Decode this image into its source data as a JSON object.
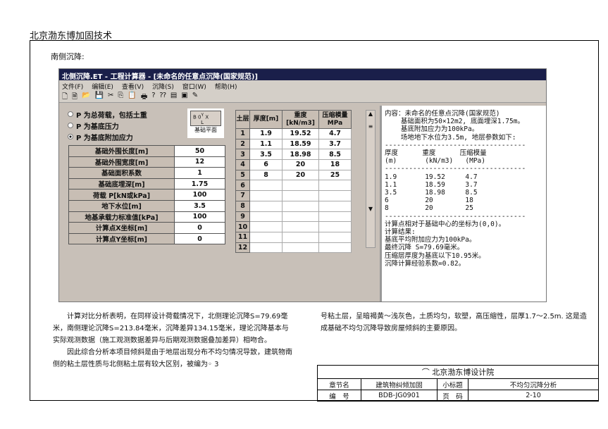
{
  "header": "北京渤东博加固技术",
  "subtitle": "南侧沉降:",
  "window": {
    "title": "北侧沉降.ET - 工程计算器 - [未命名的任意点沉降(国家规范)]",
    "menu": [
      "文件(F)",
      "编辑(E)",
      "查看(V)",
      "沉降(S)",
      "窗口(W)",
      "帮助(H)"
    ],
    "toolbar": [
      "new-icon",
      "open-file-icon",
      "open-folder-icon",
      "save-icon",
      "cut-icon",
      "copy-icon",
      "paste-icon",
      "print-icon",
      "help-icon",
      "context-help-icon",
      "calc-icon",
      "preview-icon",
      "edit-icon"
    ],
    "radios": [
      {
        "label": "P 为总荷载，包括土重",
        "checked": false
      },
      {
        "label": "P 为基底压力",
        "checked": false
      },
      {
        "label": "P 为基底附加应力",
        "checked": true
      }
    ],
    "plan": {
      "b": "B",
      "o": "0",
      "y": "Y",
      "x": "X",
      "l": "L",
      "caption": "基础平面"
    },
    "params": [
      {
        "label": "基础外围长度[m]",
        "value": "50"
      },
      {
        "label": "基础外围宽度[m]",
        "value": "12"
      },
      {
        "label": "基础面积系数",
        "value": "1"
      },
      {
        "label": "基础底埋深[m]",
        "value": "1.75"
      },
      {
        "label": "荷载 P[kN或kPa]",
        "value": "100"
      },
      {
        "label": "地下水位[m]",
        "value": "3.5"
      },
      {
        "label": "地基承载力标准值[kPa]",
        "value": "100"
      },
      {
        "label": "计算点X坐标[m]",
        "value": "0"
      },
      {
        "label": "计算点Y坐标[m]",
        "value": "0"
      }
    ],
    "grid": {
      "headers": [
        "土层",
        "厚度[m]",
        "重度[kN/m3]",
        "压缩模量MPa"
      ],
      "rows": [
        [
          "1",
          "1.9",
          "19.52",
          "4.7"
        ],
        [
          "2",
          "1.1",
          "18.59",
          "3.7"
        ],
        [
          "3",
          "3.5",
          "18.98",
          "8.5"
        ],
        [
          "4",
          "6",
          "20",
          "18"
        ],
        [
          "5",
          "8",
          "20",
          "25"
        ],
        [
          "6",
          "",
          "",
          ""
        ],
        [
          "7",
          "",
          "",
          ""
        ],
        [
          "8",
          "",
          "",
          ""
        ],
        [
          "9",
          "",
          "",
          ""
        ],
        [
          "10",
          "",
          "",
          ""
        ],
        [
          "11",
          "",
          "",
          ""
        ],
        [
          "12",
          "",
          "",
          ""
        ]
      ]
    },
    "output": "内容：未命名的任意点沉降(国家规范)\n    基础面积为50×12m2, 底面埋深1.75m。\n    基底附加应力为100kPa。\n    场地地下水位为3.5m, 地层参数如下:\n-----------------------------------\n厚度      重度      压缩模量\n(m)       (kN/m3)   (MPa)\n-----------------------------------\n1.9       19.52     4.7\n1.1       18.59     3.7\n3.5       18.98     8.5\n6         20        18\n8         20        25\n-----------------------------------\n计算点相对于基础中心的坐标为(0,0)。\n计算结果:\n基底平均附加应力为100kPa。\n最终沉降 S=79.69毫米。\n压缩层厚度为基底以下10.95米。\n沉降计算经验系数=0.82。"
  },
  "text": {
    "p1": "　　计算对比分析表明，在同样设计荷载情况下，北侧理论沉降S=79.69毫米，南侧理论沉降S=213.84毫米，沉降差异134.15毫米，理论沉降基本与实际观测数据（施工观测数据差异与后期观测数据叠加差异）相吻合。",
    "p1b": "　　因此综合分析本项目倾斜是由于地层出现分布不均匀情况导致，建筑物南侧的粘土层性质与北侧粘土层有较大区别，被编为◦ 3",
    "p2": "号粘土层，呈暗褐黄～浅灰色，土质均匀，软塑，高压缩性，层厚1.7～2.5m. 这是造成基础不均匀沉降导致房屋倾斜的主要原因。"
  },
  "footer": {
    "org": "北京渤东博设计院",
    "chapter_label": "章节名",
    "chapter": "建筑物纠倾加固",
    "subtitle_label": "小标题",
    "subtitle": "不均匀沉降分析",
    "code_label": "编　号",
    "code": "BDB-JG0901",
    "page_label": "页　码",
    "page": "2-10"
  },
  "colors": {
    "titlebar": "#1a1f4a",
    "window_bg": "#c8c0b8"
  }
}
